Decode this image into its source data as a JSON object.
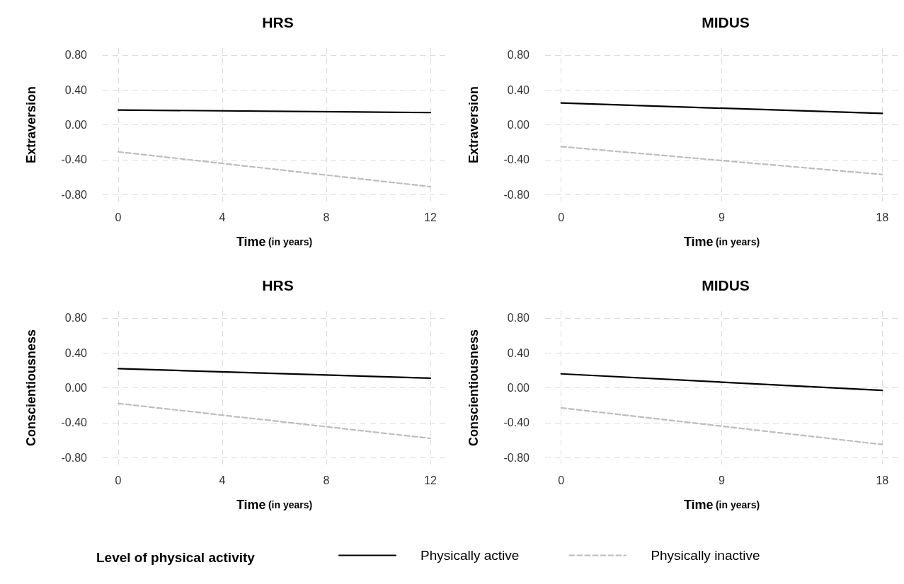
{
  "chart_data": [
    {
      "type": "line",
      "title": "HRS",
      "xlabel": "Time (in years)",
      "ylabel": "Extraversion",
      "x": [
        0,
        12
      ],
      "xlim": [
        -0.6,
        12.6
      ],
      "xticks": [
        0,
        4,
        8,
        12
      ],
      "ylim": [
        -0.88,
        0.88
      ],
      "yticks": [
        {
          "value": -0.8,
          "label": "-0.80"
        },
        {
          "value": -0.4,
          "label": "-0.40"
        },
        {
          "value": 0,
          "label": "0.00"
        },
        {
          "value": 0.4,
          "label": "0.40"
        },
        {
          "value": 0.8,
          "label": "0.80"
        }
      ],
      "grid": true,
      "legend": "bottom",
      "legend_title": "Level of physical activity",
      "series": [
        {
          "name": "Physically active",
          "color": "#000000",
          "line_style": "solid",
          "values": [
            0.17,
            0.14
          ]
        },
        {
          "name": "Physically inactive",
          "color": "#bdbdbd",
          "line_style": "dashed",
          "values": [
            -0.31,
            -0.71
          ]
        }
      ]
    },
    {
      "type": "line",
      "title": "MIDUS",
      "xlabel": "Time (in years)",
      "ylabel": "Extraversion",
      "x": [
        0,
        18
      ],
      "xlim": [
        -0.9,
        18.9
      ],
      "xticks": [
        0,
        9,
        18
      ],
      "ylim": [
        -0.88,
        0.88
      ],
      "yticks": [
        {
          "value": -0.8,
          "label": "-0.80"
        },
        {
          "value": -0.4,
          "label": "-0.40"
        },
        {
          "value": 0,
          "label": "0.00"
        },
        {
          "value": 0.4,
          "label": "0.40"
        },
        {
          "value": 0.8,
          "label": "0.80"
        }
      ],
      "grid": true,
      "series": [
        {
          "name": "Physically active",
          "color": "#000000",
          "line_style": "solid",
          "values": [
            0.25,
            0.13
          ]
        },
        {
          "name": "Physically inactive",
          "color": "#bdbdbd",
          "line_style": "dashed",
          "values": [
            -0.25,
            -0.57
          ]
        }
      ]
    },
    {
      "type": "line",
      "title": "HRS",
      "xlabel": "Time (in years)",
      "ylabel": "Conscientiousness",
      "x": [
        0,
        12
      ],
      "xlim": [
        -0.6,
        12.6
      ],
      "xticks": [
        0,
        4,
        8,
        12
      ],
      "ylim": [
        -0.88,
        0.88
      ],
      "yticks": [
        {
          "value": -0.8,
          "label": "-0.80"
        },
        {
          "value": -0.4,
          "label": "-0.40"
        },
        {
          "value": 0,
          "label": "0.00"
        },
        {
          "value": 0.4,
          "label": "0.40"
        },
        {
          "value": 0.8,
          "label": "0.80"
        }
      ],
      "grid": true,
      "series": [
        {
          "name": "Physically active",
          "color": "#000000",
          "line_style": "solid",
          "values": [
            0.22,
            0.11
          ]
        },
        {
          "name": "Physically inactive",
          "color": "#bdbdbd",
          "line_style": "dashed",
          "values": [
            -0.18,
            -0.58
          ]
        }
      ]
    },
    {
      "type": "line",
      "title": "MIDUS",
      "xlabel": "Time (in years)",
      "ylabel": "Conscientiousness",
      "x": [
        0,
        18
      ],
      "xlim": [
        -0.9,
        18.9
      ],
      "xticks": [
        0,
        9,
        18
      ],
      "ylim": [
        -0.88,
        0.88
      ],
      "yticks": [
        {
          "value": -0.8,
          "label": "-0.80"
        },
        {
          "value": -0.4,
          "label": "-0.40"
        },
        {
          "value": 0,
          "label": "0.00"
        },
        {
          "value": 0.4,
          "label": "0.40"
        },
        {
          "value": 0.8,
          "label": "0.80"
        }
      ],
      "grid": true,
      "series": [
        {
          "name": "Physically active",
          "color": "#000000",
          "line_style": "solid",
          "values": [
            0.16,
            -0.03
          ]
        },
        {
          "name": "Physically inactive",
          "color": "#bdbdbd",
          "line_style": "dashed",
          "values": [
            -0.23,
            -0.65
          ]
        }
      ]
    }
  ]
}
